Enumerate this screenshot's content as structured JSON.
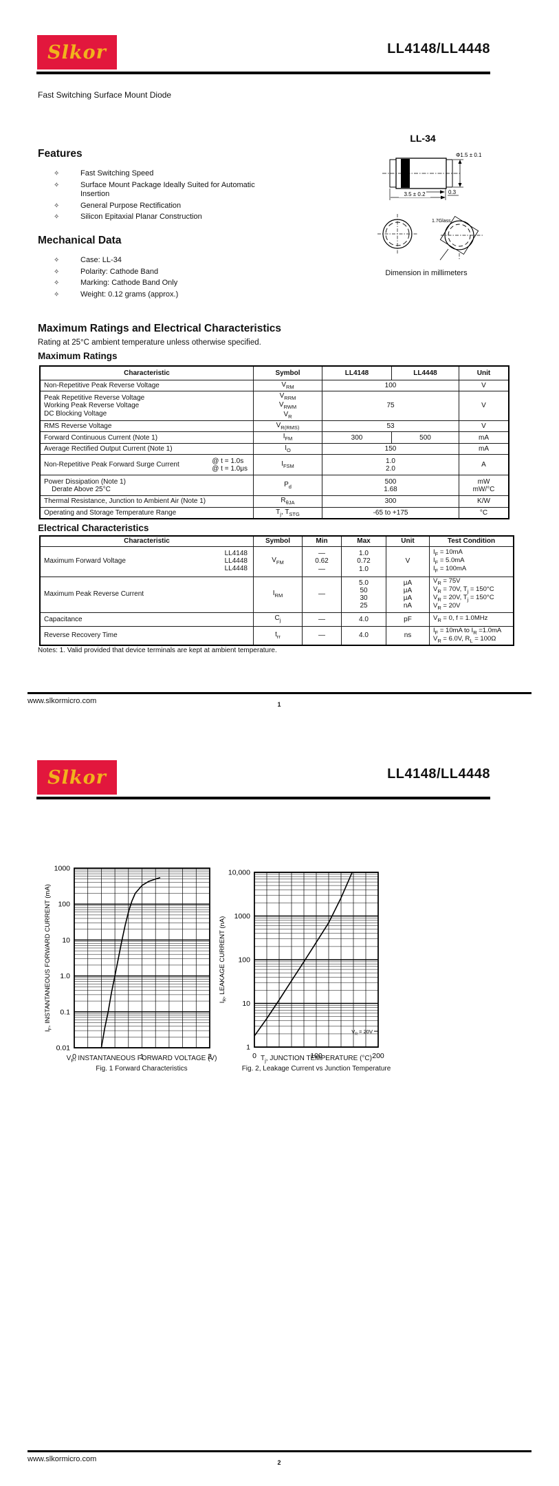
{
  "brand": {
    "logo_text": "Slkor",
    "logo_bg": "#e2173d",
    "logo_fg": "#f1b31c"
  },
  "pages": [
    {
      "number": "1",
      "title": "LL4148/LL4448",
      "subtitle": "Fast Switching Surface Mount Diode",
      "footer_url": "www.slkormicro.com"
    },
    {
      "number": "2",
      "title": "LL4148/LL4448",
      "footer_url": "www.slkormicro.com"
    }
  ],
  "features": {
    "heading": "Features",
    "bullet": "✧",
    "items": [
      "Fast Switching Speed",
      "Surface Mount Package Ideally Suited for Automatic Insertion",
      "General Purpose Rectification",
      "Silicon Epitaxial Planar Construction"
    ]
  },
  "mechanical": {
    "heading": "Mechanical Data",
    "bullet": "✧",
    "items": [
      "Case: LL-34",
      "Polarity: Cathode Band",
      "Marking: Cathode Band Only",
      "Weight: 0.12 grams (approx.)"
    ]
  },
  "package_figure": {
    "name": "LL-34",
    "dims": {
      "diameter": "Φ1.5 ± 0.1",
      "length": "3.5 ± 0.2",
      "band": "0.3",
      "glass": "1.7Glass"
    },
    "caption": "Dimension in millimeters"
  },
  "ratings_section": {
    "heading": "Maximum Ratings and Electrical Characteristics",
    "subheading": "Rating at 25°C ambient temperature unless otherwise specified.",
    "notes": "Notes: 1.  Valid provided that device terminals are kept at ambient temperature.",
    "max_ratings": {
      "heading": "Maximum Ratings",
      "columns": [
        "Characteristic",
        "Symbol",
        "LL4148",
        "LL4448",
        "Unit"
      ],
      "rows": [
        {
          "characteristic": "Non-Repetitive Peak Reverse Voltage",
          "symbol": "V~RM~",
          "span_value": "100",
          "unit": "V"
        },
        {
          "characteristic": "Peak Repetitive Reverse Voltage\nWorking Peak Reverse Voltage\nDC Blocking Voltage",
          "symbol": "V~RRM~\nV~RWM~\nV~R~",
          "span_value": "75",
          "unit": "V"
        },
        {
          "characteristic": "RMS Reverse Voltage",
          "symbol": "V~R(RMS)~",
          "span_value": "53",
          "unit": "V"
        },
        {
          "characteristic": "Forward Continuous Current (Note 1)",
          "symbol": "I~FM~",
          "ll4148": "300",
          "ll4448": "500",
          "unit": "mA"
        },
        {
          "characteristic": "Average Rectified Output Current (Note 1)",
          "symbol": "I~O~",
          "span_value": "150",
          "unit": "mA"
        },
        {
          "characteristic": "Non-Repetitive Peak Forward Surge Current",
          "char_right": "@ t = 1.0s\n@ t = 1.0μs",
          "symbol": "I~FSM~",
          "span_value": "1.0\n2.0",
          "unit": "A"
        },
        {
          "characteristic": "Power Dissipation (Note 1)\n    Derate Above 25°C",
          "symbol": "P~d~",
          "span_value": "500\n1.68",
          "unit": "mW\nmW/°C"
        },
        {
          "characteristic": "Thermal Resistance, Junction to Ambient Air (Note 1)",
          "symbol": "R~θJA~",
          "span_value": "300",
          "unit": "K/W"
        },
        {
          "characteristic": "Operating and Storage Temperature Range",
          "symbol": "T~j~, T~STG~",
          "span_value": "-65 to +175",
          "unit": "°C"
        }
      ]
    },
    "electrical": {
      "heading": "Electrical Characteristics",
      "columns": [
        "Characteristic",
        "Symbol",
        "Min",
        "Max",
        "Unit",
        "Test Condition"
      ],
      "rows": [
        {
          "characteristic": "Maximum Forward Voltage",
          "char_right": "LL4148\nLL4448\nLL4448",
          "symbol": "V~FM~",
          "min": "—\n0.62\n—",
          "max": "1.0\n0.72\n1.0",
          "unit": "V",
          "test": "I~F~ =  10mA\nI~F~ =  5.0mA\nI~F~ = 100mA"
        },
        {
          "characteristic": "Maximum Peak Reverse Current",
          "symbol": "I~RM~",
          "min": "—",
          "max": "5.0\n50\n30\n25",
          "unit": "μA\nμA\nμA\nnA",
          "test": "V~R~ = 75V\nV~R~ = 70V, T~j~ = 150°C\nV~R~ = 20V, T~j~ = 150°C\nV~R~ = 20V"
        },
        {
          "characteristic": "Capacitance",
          "symbol": "C~j~",
          "min": "—",
          "max": "4.0",
          "unit": "pF",
          "test": "V~R~ = 0, f = 1.0MHz"
        },
        {
          "characteristic": "Reverse Recovery Time",
          "symbol": "t~rr~",
          "min": "—",
          "max": "4.0",
          "unit": "ns",
          "test": "I~F~ = 10mA to I~R~ =1.0mA\nV~R~ = 6.0V, R~L~ = 100Ω"
        }
      ]
    }
  },
  "chart_data": [
    {
      "type": "line",
      "title": "Fig. 1  Forward Characteristics",
      "xlabel": "V~F~, INSTANTANEOUS FORWARD VOLTAGE (V)",
      "ylabel": "I~F~, INSTANTANEOUS FORWARD CURRENT (mA)",
      "xscale": "linear",
      "yscale": "log",
      "grid": true,
      "legend": "none",
      "xlim": [
        0,
        2
      ],
      "ylim": [
        0.01,
        1000
      ],
      "xticks": [
        "0",
        "1",
        "2"
      ],
      "xgrid_step": 0.2,
      "yticks": [
        "1000",
        "100",
        "10",
        "1.0",
        "0.1",
        "0.01"
      ],
      "series": [
        {
          "name": "forward-characteristic",
          "points": [
            [
              0.4,
              0.01
            ],
            [
              0.45,
              0.035
            ],
            [
              0.5,
              0.1
            ],
            [
              0.55,
              0.35
            ],
            [
              0.6,
              1.0
            ],
            [
              0.65,
              3.0
            ],
            [
              0.7,
              9.0
            ],
            [
              0.75,
              25
            ],
            [
              0.8,
              60
            ],
            [
              0.85,
              120
            ],
            [
              0.9,
              200
            ],
            [
              1.0,
              330
            ],
            [
              1.1,
              430
            ],
            [
              1.2,
              500
            ],
            [
              1.27,
              550
            ]
          ]
        }
      ]
    },
    {
      "type": "line",
      "title": "Fig. 2,  Leakage Current vs Junction Temperature",
      "xlabel": "T~j~, JUNCTION TEMPERATURE (°C)",
      "ylabel": "I~R~, LEAKAGE CURRENT (nA)",
      "xscale": "linear",
      "yscale": "log",
      "grid": true,
      "legend": "none",
      "annotation": "V~R~ = 20V",
      "xlim": [
        0,
        200
      ],
      "ylim": [
        1,
        10000
      ],
      "xticks": [
        "0",
        "100",
        "200"
      ],
      "xgrid_step": 20,
      "yticks": [
        "10,000",
        "1000",
        "100",
        "10",
        "1"
      ],
      "series": [
        {
          "name": "leakage-vs-temperature",
          "points": [
            [
              0,
              1.8
            ],
            [
              20,
              4.5
            ],
            [
              40,
              12
            ],
            [
              60,
              33
            ],
            [
              80,
              90
            ],
            [
              100,
              250
            ],
            [
              120,
              700
            ],
            [
              140,
              2600
            ],
            [
              158,
              10000
            ]
          ]
        }
      ]
    }
  ]
}
